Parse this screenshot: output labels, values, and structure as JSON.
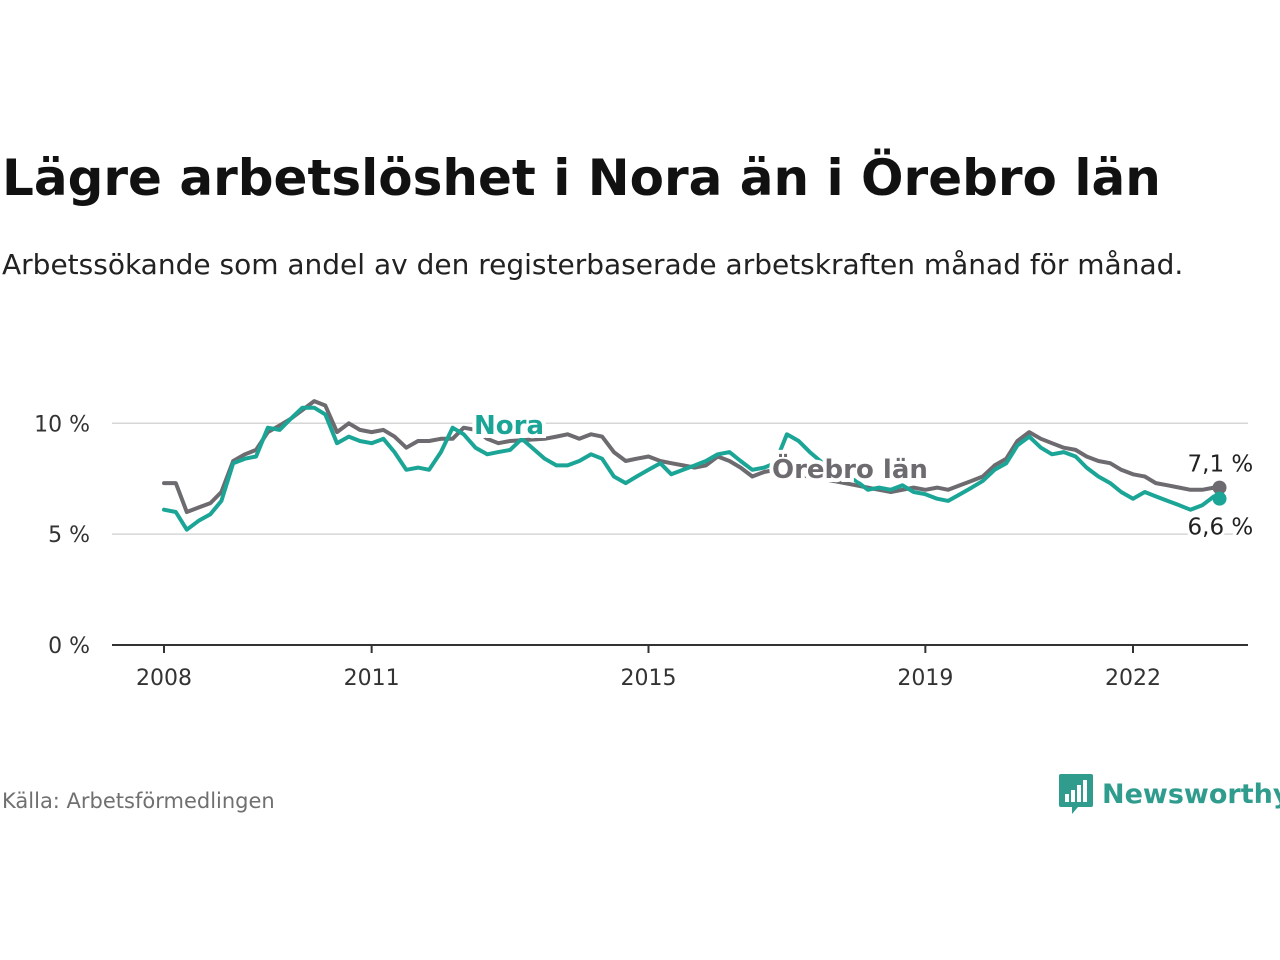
{
  "title": "Lägre arbetslöshet i Nora än i Örebro län",
  "subtitle": "Arbetssökande som andel av den registerbaserade arbetskraften månad för månad.",
  "source": "Källa: Arbetsförmedlingen",
  "brand": {
    "name": "Newsworthy",
    "icon": "bar-chart-speech-bubble-icon",
    "color": "#2f9c8e"
  },
  "chart_data": {
    "type": "line",
    "x_unit": "year",
    "xlim": [
      2007.75,
      2024.25
    ],
    "ylim": [
      0,
      11.5
    ],
    "y_ticks": [
      {
        "value": 0,
        "label": "0 %"
      },
      {
        "value": 5,
        "label": "5 %"
      },
      {
        "value": 10,
        "label": "10 %"
      }
    ],
    "x_ticks": [
      {
        "value": 2008,
        "label": "2008"
      },
      {
        "value": 2011,
        "label": "2011"
      },
      {
        "value": 2015,
        "label": "2015"
      },
      {
        "value": 2019,
        "label": "2019"
      },
      {
        "value": 2022,
        "label": "2022"
      }
    ],
    "grid": true,
    "series": [
      {
        "name": "Örebro län",
        "color": "#6d6b70",
        "end_label": "7,1 %",
        "points": [
          [
            2008.0,
            7.3
          ],
          [
            2008.17,
            7.3
          ],
          [
            2008.33,
            6.0
          ],
          [
            2008.5,
            6.2
          ],
          [
            2008.67,
            6.4
          ],
          [
            2008.83,
            6.9
          ],
          [
            2009.0,
            8.3
          ],
          [
            2009.17,
            8.6
          ],
          [
            2009.33,
            8.8
          ],
          [
            2009.5,
            9.6
          ],
          [
            2009.67,
            9.9
          ],
          [
            2009.83,
            10.2
          ],
          [
            2010.0,
            10.6
          ],
          [
            2010.17,
            11.0
          ],
          [
            2010.33,
            10.8
          ],
          [
            2010.5,
            9.6
          ],
          [
            2010.67,
            10.0
          ],
          [
            2010.83,
            9.7
          ],
          [
            2011.0,
            9.6
          ],
          [
            2011.17,
            9.7
          ],
          [
            2011.33,
            9.4
          ],
          [
            2011.5,
            8.9
          ],
          [
            2011.67,
            9.2
          ],
          [
            2011.83,
            9.2
          ],
          [
            2012.0,
            9.3
          ],
          [
            2012.17,
            9.3
          ],
          [
            2012.33,
            9.8
          ],
          [
            2012.5,
            9.7
          ],
          [
            2012.67,
            9.3
          ],
          [
            2012.83,
            9.1
          ],
          [
            2013.0,
            9.2
          ],
          [
            2013.5,
            9.3
          ],
          [
            2013.67,
            9.4
          ],
          [
            2013.83,
            9.5
          ],
          [
            2014.0,
            9.3
          ],
          [
            2014.17,
            9.5
          ],
          [
            2014.33,
            9.4
          ],
          [
            2014.5,
            8.7
          ],
          [
            2014.67,
            8.3
          ],
          [
            2014.83,
            8.4
          ],
          [
            2015.0,
            8.5
          ],
          [
            2015.17,
            8.3
          ],
          [
            2015.33,
            8.2
          ],
          [
            2015.5,
            8.1
          ],
          [
            2015.67,
            8.0
          ],
          [
            2015.83,
            8.1
          ],
          [
            2016.0,
            8.5
          ],
          [
            2016.17,
            8.3
          ],
          [
            2016.33,
            8.0
          ],
          [
            2016.5,
            7.6
          ],
          [
            2016.67,
            7.8
          ],
          [
            2016.83,
            7.9
          ],
          [
            2017.0,
            7.7
          ],
          [
            2017.33,
            7.6
          ],
          [
            2017.67,
            7.4
          ],
          [
            2018.0,
            7.2
          ],
          [
            2018.17,
            7.1
          ],
          [
            2018.33,
            7.0
          ],
          [
            2018.5,
            6.9
          ],
          [
            2018.67,
            7.0
          ],
          [
            2018.83,
            7.1
          ],
          [
            2019.0,
            7.0
          ],
          [
            2019.17,
            7.1
          ],
          [
            2019.33,
            7.0
          ],
          [
            2019.5,
            7.2
          ],
          [
            2019.67,
            7.4
          ],
          [
            2019.83,
            7.6
          ],
          [
            2020.0,
            8.1
          ],
          [
            2020.17,
            8.4
          ],
          [
            2020.33,
            9.2
          ],
          [
            2020.5,
            9.6
          ],
          [
            2020.67,
            9.3
          ],
          [
            2020.83,
            9.1
          ],
          [
            2021.0,
            8.9
          ],
          [
            2021.17,
            8.8
          ],
          [
            2021.33,
            8.5
          ],
          [
            2021.5,
            8.3
          ],
          [
            2021.67,
            8.2
          ],
          [
            2021.83,
            7.9
          ],
          [
            2022.0,
            7.7
          ],
          [
            2022.17,
            7.6
          ],
          [
            2022.33,
            7.3
          ],
          [
            2022.5,
            7.2
          ],
          [
            2022.67,
            7.1
          ],
          [
            2022.83,
            7.0
          ],
          [
            2023.0,
            7.0
          ],
          [
            2023.17,
            7.1
          ],
          [
            2023.25,
            7.1
          ]
        ]
      },
      {
        "name": "Nora",
        "color": "#1ba597",
        "end_label": "6,6 %",
        "points": [
          [
            2008.0,
            6.1
          ],
          [
            2008.17,
            6.0
          ],
          [
            2008.33,
            5.2
          ],
          [
            2008.5,
            5.6
          ],
          [
            2008.67,
            5.9
          ],
          [
            2008.83,
            6.5
          ],
          [
            2009.0,
            8.2
          ],
          [
            2009.17,
            8.4
          ],
          [
            2009.33,
            8.5
          ],
          [
            2009.5,
            9.8
          ],
          [
            2009.67,
            9.7
          ],
          [
            2009.83,
            10.2
          ],
          [
            2010.0,
            10.7
          ],
          [
            2010.17,
            10.7
          ],
          [
            2010.33,
            10.4
          ],
          [
            2010.5,
            9.1
          ],
          [
            2010.67,
            9.4
          ],
          [
            2010.83,
            9.2
          ],
          [
            2011.0,
            9.1
          ],
          [
            2011.17,
            9.3
          ],
          [
            2011.33,
            8.7
          ],
          [
            2011.5,
            7.9
          ],
          [
            2011.67,
            8.0
          ],
          [
            2011.83,
            7.9
          ],
          [
            2012.0,
            8.7
          ],
          [
            2012.17,
            9.8
          ],
          [
            2012.33,
            9.5
          ],
          [
            2012.5,
            8.9
          ],
          [
            2012.67,
            8.6
          ],
          [
            2012.83,
            8.7
          ],
          [
            2013.0,
            8.8
          ],
          [
            2013.17,
            9.3
          ],
          [
            2013.5,
            8.4
          ],
          [
            2013.67,
            8.1
          ],
          [
            2013.83,
            8.1
          ],
          [
            2014.0,
            8.3
          ],
          [
            2014.17,
            8.6
          ],
          [
            2014.33,
            8.4
          ],
          [
            2014.5,
            7.6
          ],
          [
            2014.67,
            7.3
          ],
          [
            2014.83,
            7.6
          ],
          [
            2015.0,
            7.9
          ],
          [
            2015.17,
            8.2
          ],
          [
            2015.33,
            7.7
          ],
          [
            2015.5,
            7.9
          ],
          [
            2015.67,
            8.1
          ],
          [
            2015.83,
            8.3
          ],
          [
            2016.0,
            8.6
          ],
          [
            2016.17,
            8.7
          ],
          [
            2016.33,
            8.3
          ],
          [
            2016.5,
            7.9
          ],
          [
            2016.67,
            8.0
          ],
          [
            2016.83,
            8.2
          ],
          [
            2017.0,
            9.5
          ],
          [
            2017.17,
            9.2
          ],
          [
            2017.33,
            8.7
          ],
          [
            2017.67,
            7.8
          ],
          [
            2018.0,
            7.4
          ],
          [
            2018.17,
            7.0
          ],
          [
            2018.33,
            7.1
          ],
          [
            2018.5,
            7.0
          ],
          [
            2018.67,
            7.2
          ],
          [
            2018.83,
            6.9
          ],
          [
            2019.0,
            6.8
          ],
          [
            2019.17,
            6.6
          ],
          [
            2019.33,
            6.5
          ],
          [
            2019.5,
            6.8
          ],
          [
            2019.67,
            7.1
          ],
          [
            2019.83,
            7.4
          ],
          [
            2020.0,
            7.9
          ],
          [
            2020.17,
            8.2
          ],
          [
            2020.33,
            9.0
          ],
          [
            2020.5,
            9.4
          ],
          [
            2020.67,
            8.9
          ],
          [
            2020.83,
            8.6
          ],
          [
            2021.0,
            8.7
          ],
          [
            2021.17,
            8.5
          ],
          [
            2021.33,
            8.0
          ],
          [
            2021.5,
            7.6
          ],
          [
            2021.67,
            7.3
          ],
          [
            2021.83,
            6.9
          ],
          [
            2022.0,
            6.6
          ],
          [
            2022.17,
            6.9
          ],
          [
            2022.33,
            6.7
          ],
          [
            2022.5,
            6.5
          ],
          [
            2022.67,
            6.3
          ],
          [
            2022.83,
            6.1
          ],
          [
            2023.0,
            6.3
          ],
          [
            2023.17,
            6.7
          ],
          [
            2023.25,
            6.6
          ]
        ]
      }
    ]
  }
}
